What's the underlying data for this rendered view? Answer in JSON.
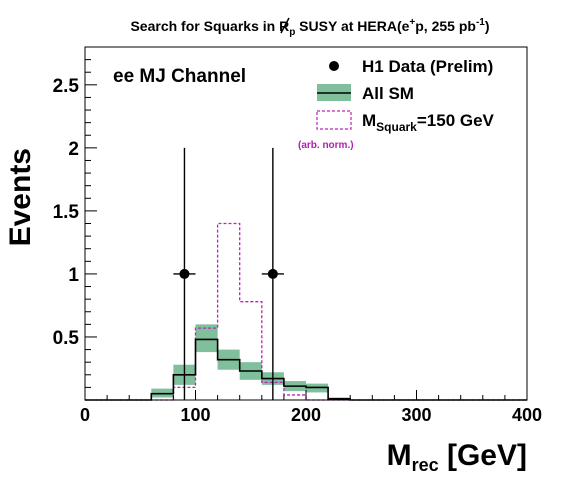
{
  "chart_data": {
    "type": "bar",
    "title": {
      "main": "Search for Squarks in R",
      "sub1": "p",
      "mid": " SUSY at HERA(e",
      "sup": "+",
      "end": "p, 255 pb",
      "sup2": "-1",
      "close": ")"
    },
    "ylabel": "Events",
    "xlabel": {
      "main": "M",
      "sub": "rec",
      "unit": " [GeV]"
    },
    "channel_label": "ee MJ Channel",
    "xlim": [
      0,
      400
    ],
    "ylim": [
      0,
      2.8
    ],
    "x_ticks": [
      0,
      100,
      200,
      300,
      400
    ],
    "y_ticks": [
      0.5,
      1,
      1.5,
      2,
      2.5
    ],
    "y_tick_labels": [
      "0.5",
      "1",
      "1.5",
      "2",
      "2.5"
    ],
    "bin_edges": [
      0,
      20,
      40,
      60,
      80,
      100,
      120,
      140,
      160,
      180,
      200,
      220,
      240,
      260,
      280,
      300,
      320,
      340,
      360,
      380,
      400
    ],
    "sm": {
      "values": [
        0,
        0,
        0,
        0.05,
        0.2,
        0.48,
        0.32,
        0.23,
        0.17,
        0.11,
        0.1,
        0.01,
        0,
        0,
        0,
        0,
        0,
        0,
        0,
        0
      ],
      "band_low": [
        0,
        0,
        0,
        0.02,
        0.12,
        0.38,
        0.24,
        0.16,
        0.12,
        0.07,
        0.06,
        0.005,
        0,
        0,
        0,
        0,
        0,
        0,
        0,
        0
      ],
      "band_high": [
        0,
        0,
        0,
        0.09,
        0.28,
        0.6,
        0.4,
        0.3,
        0.22,
        0.15,
        0.13,
        0.02,
        0,
        0,
        0,
        0,
        0,
        0,
        0,
        0
      ]
    },
    "signal": {
      "values": [
        0,
        0,
        0,
        0,
        0.1,
        0.57,
        1.4,
        0.78,
        0.14,
        0.04,
        0,
        0,
        0,
        0,
        0,
        0,
        0,
        0,
        0,
        0
      ]
    },
    "data_points": [
      {
        "x": 90,
        "y": 1,
        "yerr_low": 1,
        "yerr_high": 1,
        "xerr": 10
      },
      {
        "x": 170,
        "y": 1,
        "yerr_low": 1,
        "yerr_high": 1,
        "xerr": 10
      }
    ],
    "legend": {
      "placement": "top-right",
      "data_label": "H1 Data (Prelim)",
      "sm_label": "All SM",
      "signal_label_main": "M",
      "signal_label_sub": "Squark",
      "signal_label_rest": "=150 GeV",
      "signal_note": "(arb. norm.)"
    },
    "colors": {
      "band": "#7fbf9c",
      "sm_line": "#000000",
      "signal": "#c020c0",
      "note": "#b020b0",
      "data": "#000000"
    }
  }
}
